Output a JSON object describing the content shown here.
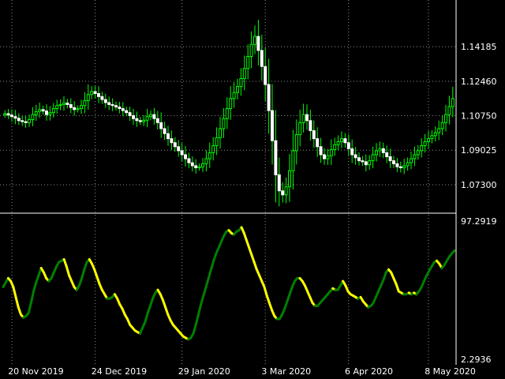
{
  "chart_data": [
    {
      "type": "candlestick",
      "title": "",
      "colors": {
        "background": "#000000",
        "up": "#00ff00",
        "down": "#ffffff",
        "wick": "#00ff00",
        "grid": "#ffffff",
        "text": "#ffffff"
      },
      "ylim": [
        1.062,
        1.162
      ],
      "y_ticks": [
        "1.14185",
        "1.12460",
        "1.10750",
        "1.09025",
        "1.07300"
      ],
      "x_ticks": [
        {
          "label": "20 Nov 2019",
          "index": 0
        },
        {
          "label": "24 Dec 2019",
          "index": 24
        },
        {
          "label": "29 Jan 2020",
          "index": 49
        },
        {
          "label": "3 Mar 2020",
          "index": 73
        },
        {
          "label": "6 Apr 2020",
          "index": 97
        },
        {
          "label": "8 May 2020",
          "index": 120
        }
      ],
      "grid": true,
      "close": [
        1.1085,
        1.1078,
        1.107,
        1.1062,
        1.105,
        1.1045,
        1.104,
        1.1055,
        1.108,
        1.1095,
        1.1105,
        1.1098,
        1.108,
        1.109,
        1.111,
        1.1125,
        1.113,
        1.1138,
        1.113,
        1.1115,
        1.1105,
        1.111,
        1.1125,
        1.115,
        1.118,
        1.1195,
        1.1185,
        1.117,
        1.1155,
        1.114,
        1.113,
        1.1125,
        1.1118,
        1.111,
        1.11,
        1.109,
        1.1075,
        1.106,
        1.105,
        1.1045,
        1.1052,
        1.107,
        1.108,
        1.106,
        1.104,
        1.101,
        1.0985,
        1.096,
        1.094,
        1.092,
        1.09,
        1.088,
        1.086,
        1.084,
        1.0825,
        1.0815,
        1.082,
        1.0835,
        1.086,
        1.089,
        1.0925,
        1.0965,
        1.101,
        1.106,
        1.111,
        1.116,
        1.119,
        1.122,
        1.126,
        1.131,
        1.137,
        1.143,
        1.147,
        1.14,
        1.132,
        1.123,
        1.11,
        1.095,
        1.078,
        1.07,
        1.068,
        1.072,
        1.08,
        1.09,
        1.098,
        1.104,
        1.108,
        1.105,
        1.1,
        1.096,
        1.092,
        1.088,
        1.086,
        1.0875,
        1.0905,
        1.093,
        1.0945,
        1.096,
        1.094,
        1.091,
        1.088,
        1.0865,
        1.085,
        1.0845,
        1.083,
        1.085,
        1.088,
        1.09,
        1.091,
        1.089,
        1.087,
        1.085,
        1.0835,
        1.082,
        1.0815,
        1.0825,
        1.084,
        1.086,
        1.088,
        1.09,
        1.0925,
        1.0945,
        1.096,
        1.0975,
        1.099,
        1.101,
        1.104,
        1.108,
        1.112,
        1.116
      ]
    },
    {
      "type": "line",
      "title": "",
      "colors": {
        "rising": "#008000",
        "falling": "#ffff00",
        "grid": "#ffffff",
        "text": "#ffffff"
      },
      "ylim": [
        2.2936,
        97.2919
      ],
      "y_ticks": [
        "97.2919",
        "2.2936"
      ],
      "values": [
        52,
        55,
        58,
        56,
        52,
        45,
        38,
        33,
        31,
        32,
        34,
        41,
        49,
        55,
        60,
        65,
        62,
        58,
        56,
        58,
        62,
        66,
        69,
        70,
        71,
        66,
        60,
        56,
        52,
        50,
        53,
        58,
        64,
        69,
        71,
        68,
        64,
        59,
        54,
        50,
        47,
        44,
        44,
        45,
        47,
        44,
        40,
        37,
        33,
        30,
        26,
        24,
        22,
        21,
        20,
        24,
        28,
        34,
        39,
        44,
        48,
        50,
        47,
        43,
        38,
        33,
        29,
        26,
        24,
        22,
        20,
        18,
        17,
        16,
        17,
        20,
        26,
        33,
        40,
        46,
        52,
        58,
        64,
        70,
        75,
        79,
        83,
        87,
        90,
        91,
        89,
        88,
        90,
        91,
        93,
        89,
        84,
        79,
        74,
        69,
        64,
        60,
        56,
        52,
        46,
        41,
        36,
        32,
        30,
        30,
        33,
        37,
        42,
        47,
        52,
        56,
        58,
        58,
        56,
        53,
        49,
        45,
        41,
        39,
        39,
        41,
        43,
        45,
        47,
        49,
        51,
        50,
        50,
        53,
        56,
        53,
        49,
        47,
        46,
        45,
        44,
        45,
        42,
        40,
        38,
        39,
        41,
        45,
        49,
        53,
        57,
        62,
        64,
        62,
        58,
        54,
        49,
        48,
        47,
        47,
        48,
        47,
        48,
        47,
        49,
        52,
        56,
        60,
        63,
        66,
        69,
        70,
        68,
        65,
        67,
        70,
        73,
        75,
        77
      ]
    }
  ]
}
